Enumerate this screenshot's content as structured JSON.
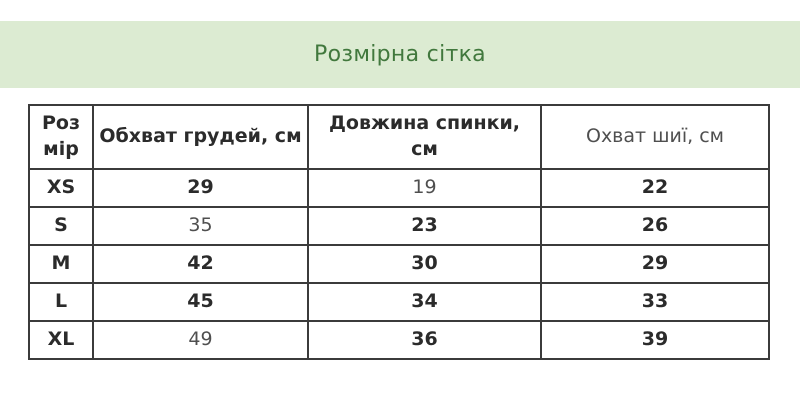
{
  "colors": {
    "banner_background": "#dcebd2",
    "banner_text": "#41783d",
    "table_border": "#3b3b3b",
    "bold_text": "#2b2b2b",
    "regular_text": "#4f4f4f"
  },
  "chart_data": {
    "type": "table",
    "title": "Розмірна сітка",
    "columns": [
      {
        "label": "Роз\nмір",
        "weight": "bold"
      },
      {
        "label": "Обхват грудей, см",
        "weight": "bold"
      },
      {
        "label": "Довжина спинки,\nсм",
        "weight": "bold"
      },
      {
        "label": "Охват шиї, см",
        "weight": "regular"
      }
    ],
    "rows": [
      {
        "cells": [
          {
            "text": "XS",
            "weight": "bold"
          },
          {
            "text": "29",
            "weight": "bold"
          },
          {
            "text": "19",
            "weight": "regular"
          },
          {
            "text": "22",
            "weight": "bold"
          }
        ]
      },
      {
        "cells": [
          {
            "text": "S",
            "weight": "bold"
          },
          {
            "text": "35",
            "weight": "regular"
          },
          {
            "text": "23",
            "weight": "bold"
          },
          {
            "text": "26",
            "weight": "bold"
          }
        ]
      },
      {
        "cells": [
          {
            "text": "M",
            "weight": "bold"
          },
          {
            "text": "42",
            "weight": "bold"
          },
          {
            "text": "30",
            "weight": "bold"
          },
          {
            "text": "29",
            "weight": "bold"
          }
        ]
      },
      {
        "cells": [
          {
            "text": "L",
            "weight": "bold"
          },
          {
            "text": "45",
            "weight": "bold"
          },
          {
            "text": "34",
            "weight": "bold"
          },
          {
            "text": "33",
            "weight": "bold"
          }
        ]
      },
      {
        "cells": [
          {
            "text": "XL",
            "weight": "bold"
          },
          {
            "text": "49",
            "weight": "regular"
          },
          {
            "text": "36",
            "weight": "bold"
          },
          {
            "text": "39",
            "weight": "bold"
          }
        ]
      }
    ]
  }
}
